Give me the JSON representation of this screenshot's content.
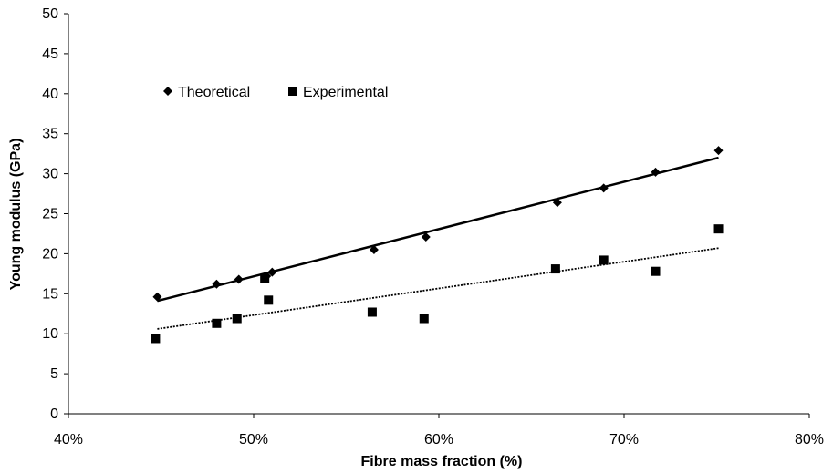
{
  "chart_data": {
    "type": "scatter",
    "xlabel": "Fibre mass fraction (%)",
    "ylabel": "Young modulus (GPa)",
    "xlim": [
      0.4,
      0.8
    ],
    "ylim": [
      0,
      50
    ],
    "x_ticks": [
      0.4,
      0.5,
      0.6,
      0.7,
      0.8
    ],
    "x_tick_labels": [
      "40%",
      "50%",
      "60%",
      "70%",
      "80%"
    ],
    "y_ticks": [
      0,
      5,
      10,
      15,
      20,
      25,
      30,
      35,
      40,
      45,
      50
    ],
    "y_tick_labels": [
      "0",
      "5",
      "10",
      "15",
      "20",
      "25",
      "30",
      "35",
      "40",
      "45",
      "50"
    ],
    "grid": false,
    "legend_position": "top-left",
    "series": [
      {
        "name": "Theoretical",
        "marker": "diamond",
        "color": "#000000",
        "x": [
          0.448,
          0.48,
          0.492,
          0.507,
          0.51,
          0.565,
          0.593,
          0.664,
          0.689,
          0.717,
          0.751
        ],
        "y": [
          14.6,
          16.2,
          16.8,
          17.2,
          17.7,
          20.5,
          22.1,
          26.4,
          28.2,
          30.2,
          32.9
        ],
        "trendline": {
          "style": "solid",
          "x": [
            0.448,
            0.751
          ],
          "y": [
            14.1,
            32.0
          ]
        }
      },
      {
        "name": "Experimental",
        "marker": "square",
        "color": "#000000",
        "x": [
          0.447,
          0.48,
          0.491,
          0.506,
          0.508,
          0.564,
          0.592,
          0.663,
          0.689,
          0.717,
          0.751
        ],
        "y": [
          9.4,
          11.3,
          11.9,
          16.9,
          14.2,
          12.7,
          11.9,
          18.1,
          19.2,
          17.8,
          23.1
        ],
        "trendline": {
          "style": "dotted",
          "x": [
            0.448,
            0.751
          ],
          "y": [
            10.6,
            20.7
          ]
        }
      }
    ]
  }
}
